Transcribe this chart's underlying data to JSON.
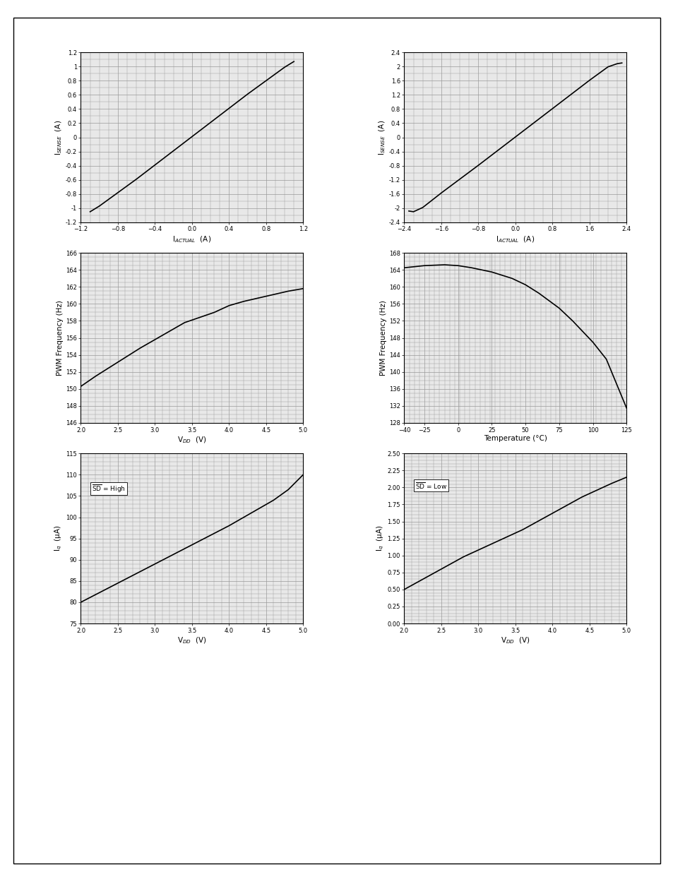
{
  "fig_bg": "#ffffff",
  "plot_bg": "#e8e8e8",
  "line_color": "#000000",
  "grid_color": "#999999",
  "border_color": "#000000",
  "plot1": {
    "xlabel": "I$_{ACTUAL}$  (A)",
    "ylabel": "I$_{SENSE}$  (A)",
    "xlim": [
      -1.2,
      1.2
    ],
    "ylim": [
      -1.2,
      1.2
    ],
    "xticks": [
      -1.2,
      -0.8,
      -0.4,
      0,
      0.4,
      0.8,
      1.2
    ],
    "yticks": [
      -1.2,
      -1.0,
      -0.8,
      -0.6,
      -0.4,
      -0.2,
      0,
      0.2,
      0.4,
      0.6,
      0.8,
      1.0,
      1.2
    ],
    "ytick_labels": [
      "-1.2",
      "-1",
      "-0.8",
      "-0.6",
      "-0.4",
      "-0.2",
      "0",
      "0.2",
      "0.4",
      "0.6",
      "0.8",
      "1",
      "1.2"
    ],
    "x": [
      -1.1,
      -1.0,
      -0.8,
      -0.6,
      -0.4,
      -0.2,
      0.0,
      0.2,
      0.4,
      0.6,
      0.8,
      1.0,
      1.1
    ],
    "y": [
      -1.05,
      -0.97,
      -0.78,
      -0.59,
      -0.39,
      -0.19,
      0.01,
      0.21,
      0.41,
      0.61,
      0.8,
      0.99,
      1.07
    ],
    "minor_xticks": [
      -1.2,
      -1.1,
      -1.0,
      -0.9,
      -0.8,
      -0.7,
      -0.6,
      -0.5,
      -0.4,
      -0.3,
      -0.2,
      -0.1,
      0,
      0.1,
      0.2,
      0.3,
      0.4,
      0.5,
      0.6,
      0.7,
      0.8,
      0.9,
      1.0,
      1.1,
      1.2
    ],
    "minor_yticks": [
      -1.2,
      -1.1,
      -1.0,
      -0.9,
      -0.8,
      -0.7,
      -0.6,
      -0.5,
      -0.4,
      -0.3,
      -0.2,
      -0.1,
      0,
      0.1,
      0.2,
      0.3,
      0.4,
      0.5,
      0.6,
      0.7,
      0.8,
      0.9,
      1.0,
      1.1,
      1.2
    ]
  },
  "plot2": {
    "xlabel": "I$_{ACTUAL}$  (A)",
    "ylabel": "I$_{SENSE}$  (A)",
    "xlim": [
      -2.4,
      2.4
    ],
    "ylim": [
      -2.4,
      2.4
    ],
    "xticks": [
      -2.4,
      -1.6,
      -0.8,
      0,
      0.8,
      1.6,
      2.4
    ],
    "yticks": [
      -2.4,
      -2.0,
      -1.6,
      -1.2,
      -0.8,
      -0.4,
      0,
      0.4,
      0.8,
      1.2,
      1.6,
      2.0,
      2.4
    ],
    "ytick_labels": [
      "-2.4",
      "-2",
      "-1.6",
      "-1.2",
      "-0.8",
      "-0.4",
      "0",
      "0.4",
      "0.8",
      "1.2",
      "1.6",
      "2",
      "2.4"
    ],
    "x": [
      -2.3,
      -2.2,
      -2.0,
      -1.6,
      -1.2,
      -0.8,
      -0.4,
      0.0,
      0.4,
      0.8,
      1.2,
      1.6,
      2.0,
      2.2,
      2.3
    ],
    "y": [
      -2.08,
      -2.1,
      -1.98,
      -1.57,
      -1.18,
      -0.79,
      -0.39,
      0.01,
      0.41,
      0.81,
      1.21,
      1.61,
      1.99,
      2.08,
      2.1
    ],
    "minor_xticks": [
      -2.4,
      -2.2,
      -2.0,
      -1.8,
      -1.6,
      -1.4,
      -1.2,
      -1.0,
      -0.8,
      -0.6,
      -0.4,
      -0.2,
      0,
      0.2,
      0.4,
      0.6,
      0.8,
      1.0,
      1.2,
      1.4,
      1.6,
      1.8,
      2.0,
      2.2,
      2.4
    ],
    "minor_yticks": [
      -2.4,
      -2.2,
      -2.0,
      -1.8,
      -1.6,
      -1.4,
      -1.2,
      -1.0,
      -0.8,
      -0.6,
      -0.4,
      -0.2,
      0,
      0.2,
      0.4,
      0.6,
      0.8,
      1.0,
      1.2,
      1.4,
      1.6,
      1.8,
      2.0,
      2.2,
      2.4
    ]
  },
  "plot3": {
    "xlabel": "V$_{DD}$  (V)",
    "ylabel": "PWM Frequency (Hz)",
    "xlim": [
      2,
      5
    ],
    "ylim": [
      146,
      166
    ],
    "xticks": [
      2,
      2.5,
      3,
      3.5,
      4,
      4.5,
      5
    ],
    "yticks": [
      146,
      148,
      150,
      152,
      154,
      156,
      158,
      160,
      162,
      164,
      166
    ],
    "x": [
      2.0,
      2.2,
      2.4,
      2.6,
      2.8,
      3.0,
      3.2,
      3.4,
      3.6,
      3.8,
      4.0,
      4.2,
      4.4,
      4.6,
      4.8,
      5.0
    ],
    "y": [
      150.3,
      151.5,
      152.6,
      153.7,
      154.8,
      155.8,
      156.8,
      157.8,
      158.4,
      159.0,
      159.8,
      160.3,
      160.7,
      161.1,
      161.5,
      161.8
    ]
  },
  "plot4": {
    "xlabel": "Temperature (°C)",
    "ylabel": "PWM Frequency (Hz)",
    "xlim": [
      -40,
      125
    ],
    "ylim": [
      128,
      168
    ],
    "xticks": [
      -40,
      -25,
      0,
      25,
      50,
      75,
      100,
      125
    ],
    "yticks": [
      128,
      132,
      136,
      140,
      144,
      148,
      152,
      156,
      160,
      164,
      168
    ],
    "x": [
      -40,
      -25,
      -10,
      0,
      10,
      25,
      40,
      50,
      60,
      75,
      85,
      100,
      110,
      125
    ],
    "y": [
      164.5,
      165.0,
      165.2,
      165.0,
      164.5,
      163.5,
      162.0,
      160.5,
      158.5,
      155.0,
      152.0,
      147.0,
      143.0,
      131.5
    ]
  },
  "plot5": {
    "xlabel": "V$_{DD}$  (V)",
    "ylabel": "I$_q$  (μA)",
    "xlim": [
      2,
      5
    ],
    "ylim": [
      75,
      115
    ],
    "xticks": [
      2,
      2.5,
      3,
      3.5,
      4,
      4.5,
      5
    ],
    "yticks": [
      75,
      80,
      85,
      90,
      95,
      100,
      105,
      110,
      115
    ],
    "x": [
      2.0,
      2.2,
      2.4,
      2.6,
      2.8,
      3.0,
      3.2,
      3.4,
      3.6,
      3.8,
      4.0,
      4.2,
      4.4,
      4.6,
      4.8,
      5.0
    ],
    "y": [
      80.0,
      81.8,
      83.6,
      85.4,
      87.2,
      89.0,
      90.8,
      92.6,
      94.4,
      96.2,
      98.0,
      100.0,
      102.0,
      104.0,
      106.5,
      110.0
    ],
    "annotation": "SD = High",
    "ann_x": 2.15,
    "ann_y": 108
  },
  "plot6": {
    "xlabel": "V$_{DD}$  (V)",
    "ylabel": "I$_q$  (μA)",
    "xlim": [
      2,
      5
    ],
    "ylim": [
      0,
      2.5
    ],
    "xticks": [
      2,
      2.5,
      3,
      3.5,
      4,
      4.5,
      5
    ],
    "yticks": [
      0,
      0.25,
      0.5,
      0.75,
      1.0,
      1.25,
      1.5,
      1.75,
      2.0,
      2.25,
      2.5
    ],
    "x": [
      2.0,
      2.2,
      2.4,
      2.6,
      2.8,
      3.0,
      3.2,
      3.4,
      3.6,
      3.8,
      4.0,
      4.2,
      4.4,
      4.6,
      4.8,
      5.0
    ],
    "y": [
      0.5,
      0.62,
      0.74,
      0.86,
      0.98,
      1.08,
      1.18,
      1.28,
      1.38,
      1.5,
      1.62,
      1.74,
      1.86,
      1.96,
      2.06,
      2.15
    ],
    "annotation": "SD = Low",
    "ann_x": 2.15,
    "ann_y": 2.1
  }
}
